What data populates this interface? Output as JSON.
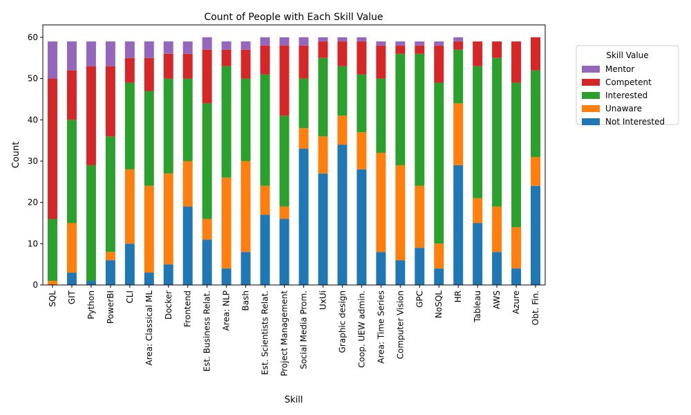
{
  "chart_data": {
    "type": "bar",
    "stacked": true,
    "title": "Count of People with Each Skill Value",
    "xlabel": "Skill",
    "ylabel": "Count",
    "ylim": [
      0,
      63
    ],
    "yticks": [
      0,
      10,
      20,
      30,
      40,
      50,
      60
    ],
    "grid": false,
    "legend": {
      "title": "Skill Value",
      "placement": "outside-top-right",
      "order": [
        "Mentor",
        "Competent",
        "Interested",
        "Unaware",
        "Not Interested"
      ]
    },
    "categories": [
      "SQL",
      "GIT",
      "Python",
      "PowerBI",
      "CLI",
      "Area: Classical ML",
      "Docker",
      "Frontend",
      "Est. Business Relat.",
      "Area: NLP",
      "Bash",
      "Est. Scientists Relat.",
      "Project Management",
      "Social Media Prom.",
      "UxUi",
      "Graphic design",
      "Coop. UEW admin.",
      "Area: Time Series",
      "Computer Vision",
      "GPC",
      "NoSQL",
      "HR",
      "Tableau",
      "AWS",
      "Azure",
      "Obt. Fin."
    ],
    "series": [
      {
        "name": "Not Interested",
        "color": "#1f77b4",
        "values": [
          0,
          3,
          1,
          6,
          10,
          3,
          5,
          19,
          11,
          4,
          8,
          17,
          16,
          33,
          27,
          34,
          28,
          8,
          6,
          9,
          4,
          29,
          15,
          8,
          4,
          24
        ]
      },
      {
        "name": "Unaware",
        "color": "#ff7f0e",
        "values": [
          1,
          12,
          0,
          2,
          18,
          21,
          22,
          11,
          5,
          22,
          22,
          7,
          3,
          5,
          9,
          7,
          9,
          24,
          23,
          15,
          6,
          15,
          6,
          11,
          10,
          7
        ]
      },
      {
        "name": "Interested",
        "color": "#2ca02c",
        "values": [
          15,
          25,
          28,
          28,
          21,
          23,
          23,
          20,
          28,
          27,
          20,
          27,
          22,
          12,
          19,
          12,
          14,
          18,
          27,
          32,
          39,
          13,
          32,
          36,
          35,
          21
        ]
      },
      {
        "name": "Competent",
        "color": "#d62728",
        "values": [
          34,
          12,
          24,
          17,
          6,
          8,
          6,
          6,
          13,
          4,
          7,
          7,
          17,
          8,
          4,
          6,
          8,
          8,
          2,
          2,
          9,
          2,
          6,
          4,
          10,
          8
        ]
      },
      {
        "name": "Mentor",
        "color": "#9467bd",
        "values": [
          9,
          7,
          6,
          6,
          4,
          4,
          3,
          3,
          3,
          2,
          2,
          2,
          2,
          2,
          1,
          1,
          1,
          1,
          1,
          1,
          1,
          1,
          0,
          0,
          0,
          0
        ]
      }
    ]
  }
}
